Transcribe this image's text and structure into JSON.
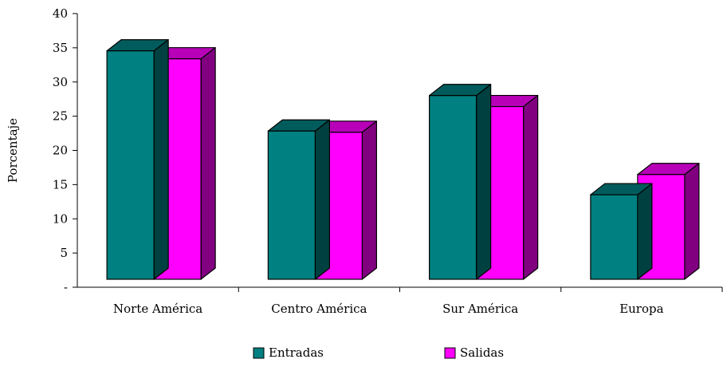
{
  "chart_data": {
    "type": "bar",
    "categories": [
      "Norte América",
      "Centro América",
      "Sur América",
      "Europa"
    ],
    "series": [
      {
        "name": "Entradas",
        "values": [
          37.3,
          24.2,
          30.0,
          13.8
        ],
        "color": "#008080"
      },
      {
        "name": "Salidas",
        "values": [
          36.0,
          24.0,
          28.2,
          17.1
        ],
        "color": "#FF00FF"
      }
    ],
    "ylabel": "Porcentaje",
    "xlabel": "",
    "ylim": [
      0,
      40
    ],
    "yticks": [
      0,
      5,
      10,
      15,
      20,
      25,
      30,
      35,
      40
    ],
    "ytick_labels": [
      "-",
      "5",
      "10",
      "15",
      "20",
      "25",
      "30",
      "35",
      "40"
    ],
    "grid": false,
    "legend_position": "bottom",
    "style": "3d-bar"
  }
}
